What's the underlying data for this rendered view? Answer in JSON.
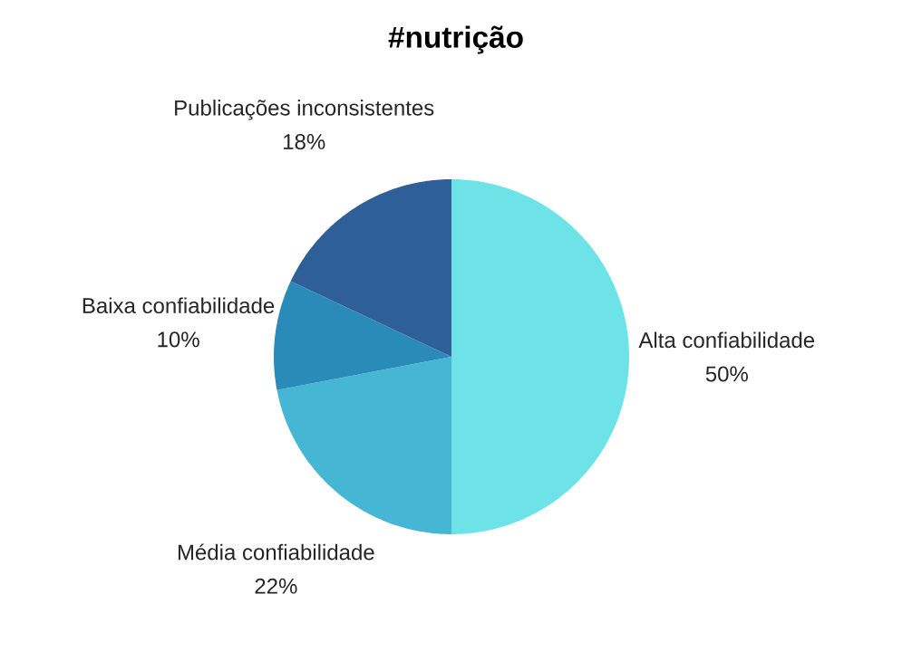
{
  "chart_data": {
    "type": "pie",
    "title": "#nutrição",
    "categories": [
      "Alta confiabilidade",
      "Média confiabilidade",
      "Baixa confiabilidade",
      "Publicações inconsistentes"
    ],
    "values": [
      50,
      22,
      10,
      18
    ],
    "value_labels": [
      "50%",
      "22%",
      "10%",
      "18%"
    ],
    "colors": [
      "#6de3e8",
      "#45b6d4",
      "#2a8bb8",
      "#2e5f99"
    ],
    "legend": false
  }
}
